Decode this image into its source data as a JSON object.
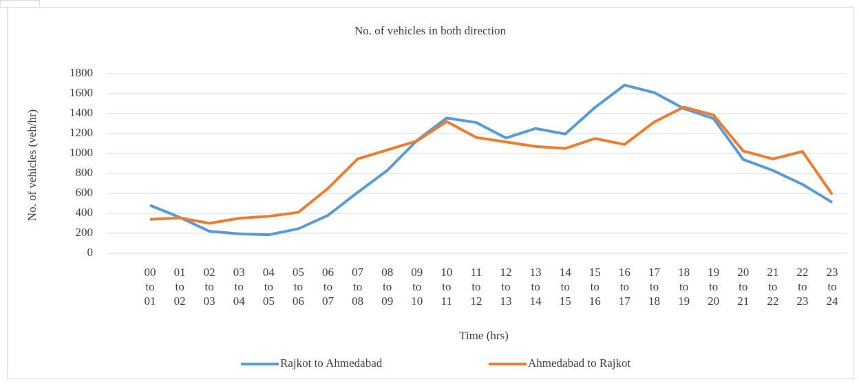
{
  "chart_data": {
    "type": "line",
    "title": "No. of vehicles in both direction",
    "x_label": "Time (hrs)",
    "y_label": "No. of vehicles (veh/hr)",
    "categories": [
      "00 to 01",
      "01 to 02",
      "02 to 03",
      "03 to 04",
      "04 to 05",
      "05 to 06",
      "06 to 07",
      "07 to 08",
      "08 to 09",
      "09 to 10",
      "10 to 11",
      "11 to 12",
      "12 to 13",
      "13 to 14",
      "14 to 15",
      "15 to 16",
      "16 to 17",
      "17 to 18",
      "18 to 19",
      "19 to 20",
      "20 to 21",
      "21 to 22",
      "22 to 23",
      "23 to 24"
    ],
    "series": [
      {
        "name": "Rajkot to Ahmedabad",
        "color": "#5b9bd5",
        "values": [
          480,
          360,
          220,
          195,
          185,
          245,
          380,
          610,
          830,
          1130,
          1355,
          1310,
          1155,
          1250,
          1195,
          1460,
          1685,
          1610,
          1450,
          1350,
          940,
          830,
          690,
          510
        ]
      },
      {
        "name": "Ahmedabad to Rajkot",
        "color": "#ed7d31",
        "values": [
          340,
          355,
          300,
          350,
          370,
          410,
          650,
          945,
          1035,
          1125,
          1320,
          1160,
          1115,
          1070,
          1050,
          1150,
          1090,
          1315,
          1465,
          1385,
          1025,
          945,
          1020,
          590
        ]
      }
    ],
    "ylim": [
      0,
      1800
    ],
    "yticks": [
      0,
      200,
      400,
      600,
      800,
      1000,
      1200,
      1400,
      1600,
      1800
    ],
    "grid": true,
    "legend": "bottom"
  }
}
